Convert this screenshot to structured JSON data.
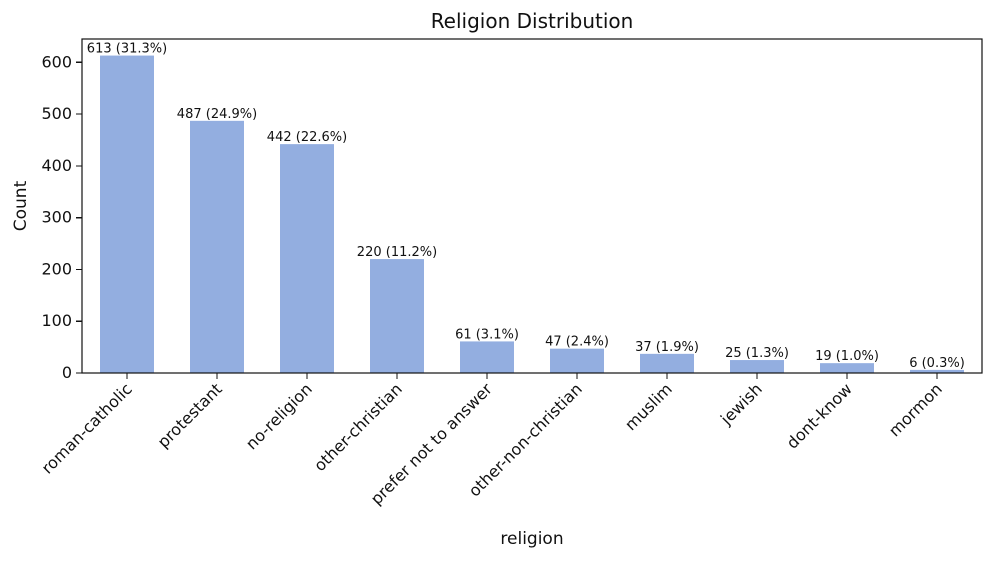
{
  "chart_data": {
    "type": "bar",
    "title": "Religion Distribution",
    "xlabel": "religion",
    "ylabel": "Count",
    "categories": [
      "roman-catholic",
      "protestant",
      "no-religion",
      "other-christian",
      "prefer not to answer",
      "other-non-christian",
      "muslim",
      "jewish",
      "dont-know",
      "mormon"
    ],
    "values": [
      613,
      487,
      442,
      220,
      61,
      47,
      37,
      25,
      19,
      6
    ],
    "data_labels": [
      "613 (31.3%)",
      "487 (24.9%)",
      "442 (22.6%)",
      "220 (11.2%)",
      "61 (3.1%)",
      "47 (2.4%)",
      "37 (1.9%)",
      "25 (1.3%)",
      "19 (1.0%)",
      "6 (0.3%)"
    ],
    "ylim": [
      0,
      645
    ],
    "yticks": [
      0,
      100,
      200,
      300,
      400,
      500,
      600
    ],
    "bar_color": "#93aee0",
    "grid": false,
    "legend": "none"
  }
}
